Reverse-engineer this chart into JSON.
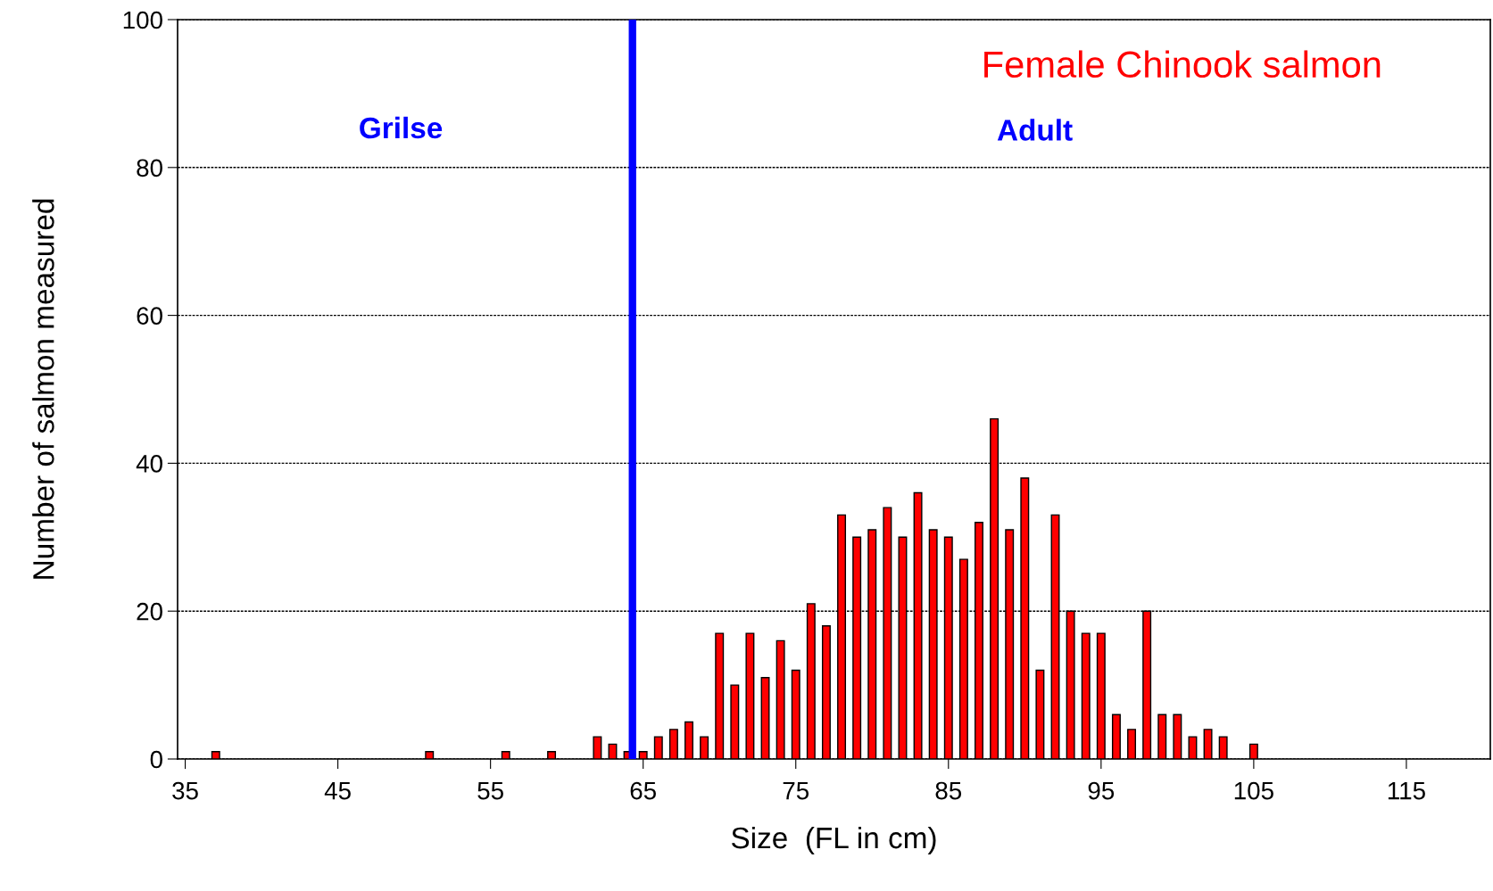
{
  "chart_data": {
    "type": "bar",
    "xlabel": "Size  (FL in cm)",
    "ylabel": "Number of salmon measured",
    "x": [
      37,
      51,
      56,
      59,
      62,
      63,
      64,
      65,
      66,
      67,
      68,
      69,
      70,
      71,
      72,
      73,
      74,
      75,
      76,
      77,
      78,
      79,
      80,
      81,
      82,
      83,
      84,
      85,
      86,
      87,
      88,
      89,
      90,
      91,
      92,
      93,
      94,
      95,
      96,
      97,
      98,
      99,
      100,
      101,
      102,
      103,
      105
    ],
    "values": [
      1,
      1,
      1,
      1,
      3,
      2,
      1,
      1,
      3,
      4,
      5,
      3,
      17,
      10,
      17,
      11,
      16,
      12,
      21,
      18,
      33,
      30,
      31,
      34,
      30,
      36,
      31,
      30,
      27,
      32,
      46,
      31,
      38,
      12,
      33,
      20,
      17,
      17,
      6,
      4,
      20,
      6,
      6,
      3,
      4,
      3,
      2
    ],
    "color": "#ff0000",
    "xlim": [
      34.5,
      120.5
    ],
    "xticks": [
      35,
      45,
      55,
      65,
      75,
      85,
      95,
      105,
      115
    ],
    "ylim": [
      0,
      100
    ],
    "yticks": [
      0,
      20,
      40,
      60,
      80,
      100
    ],
    "grid": "y",
    "ref_lines": [
      {
        "axis": "x",
        "value": 64.3,
        "color": "#0000ff"
      }
    ],
    "annotations": [
      "Female Chinook salmon",
      "Grilse",
      "Adult"
    ]
  }
}
